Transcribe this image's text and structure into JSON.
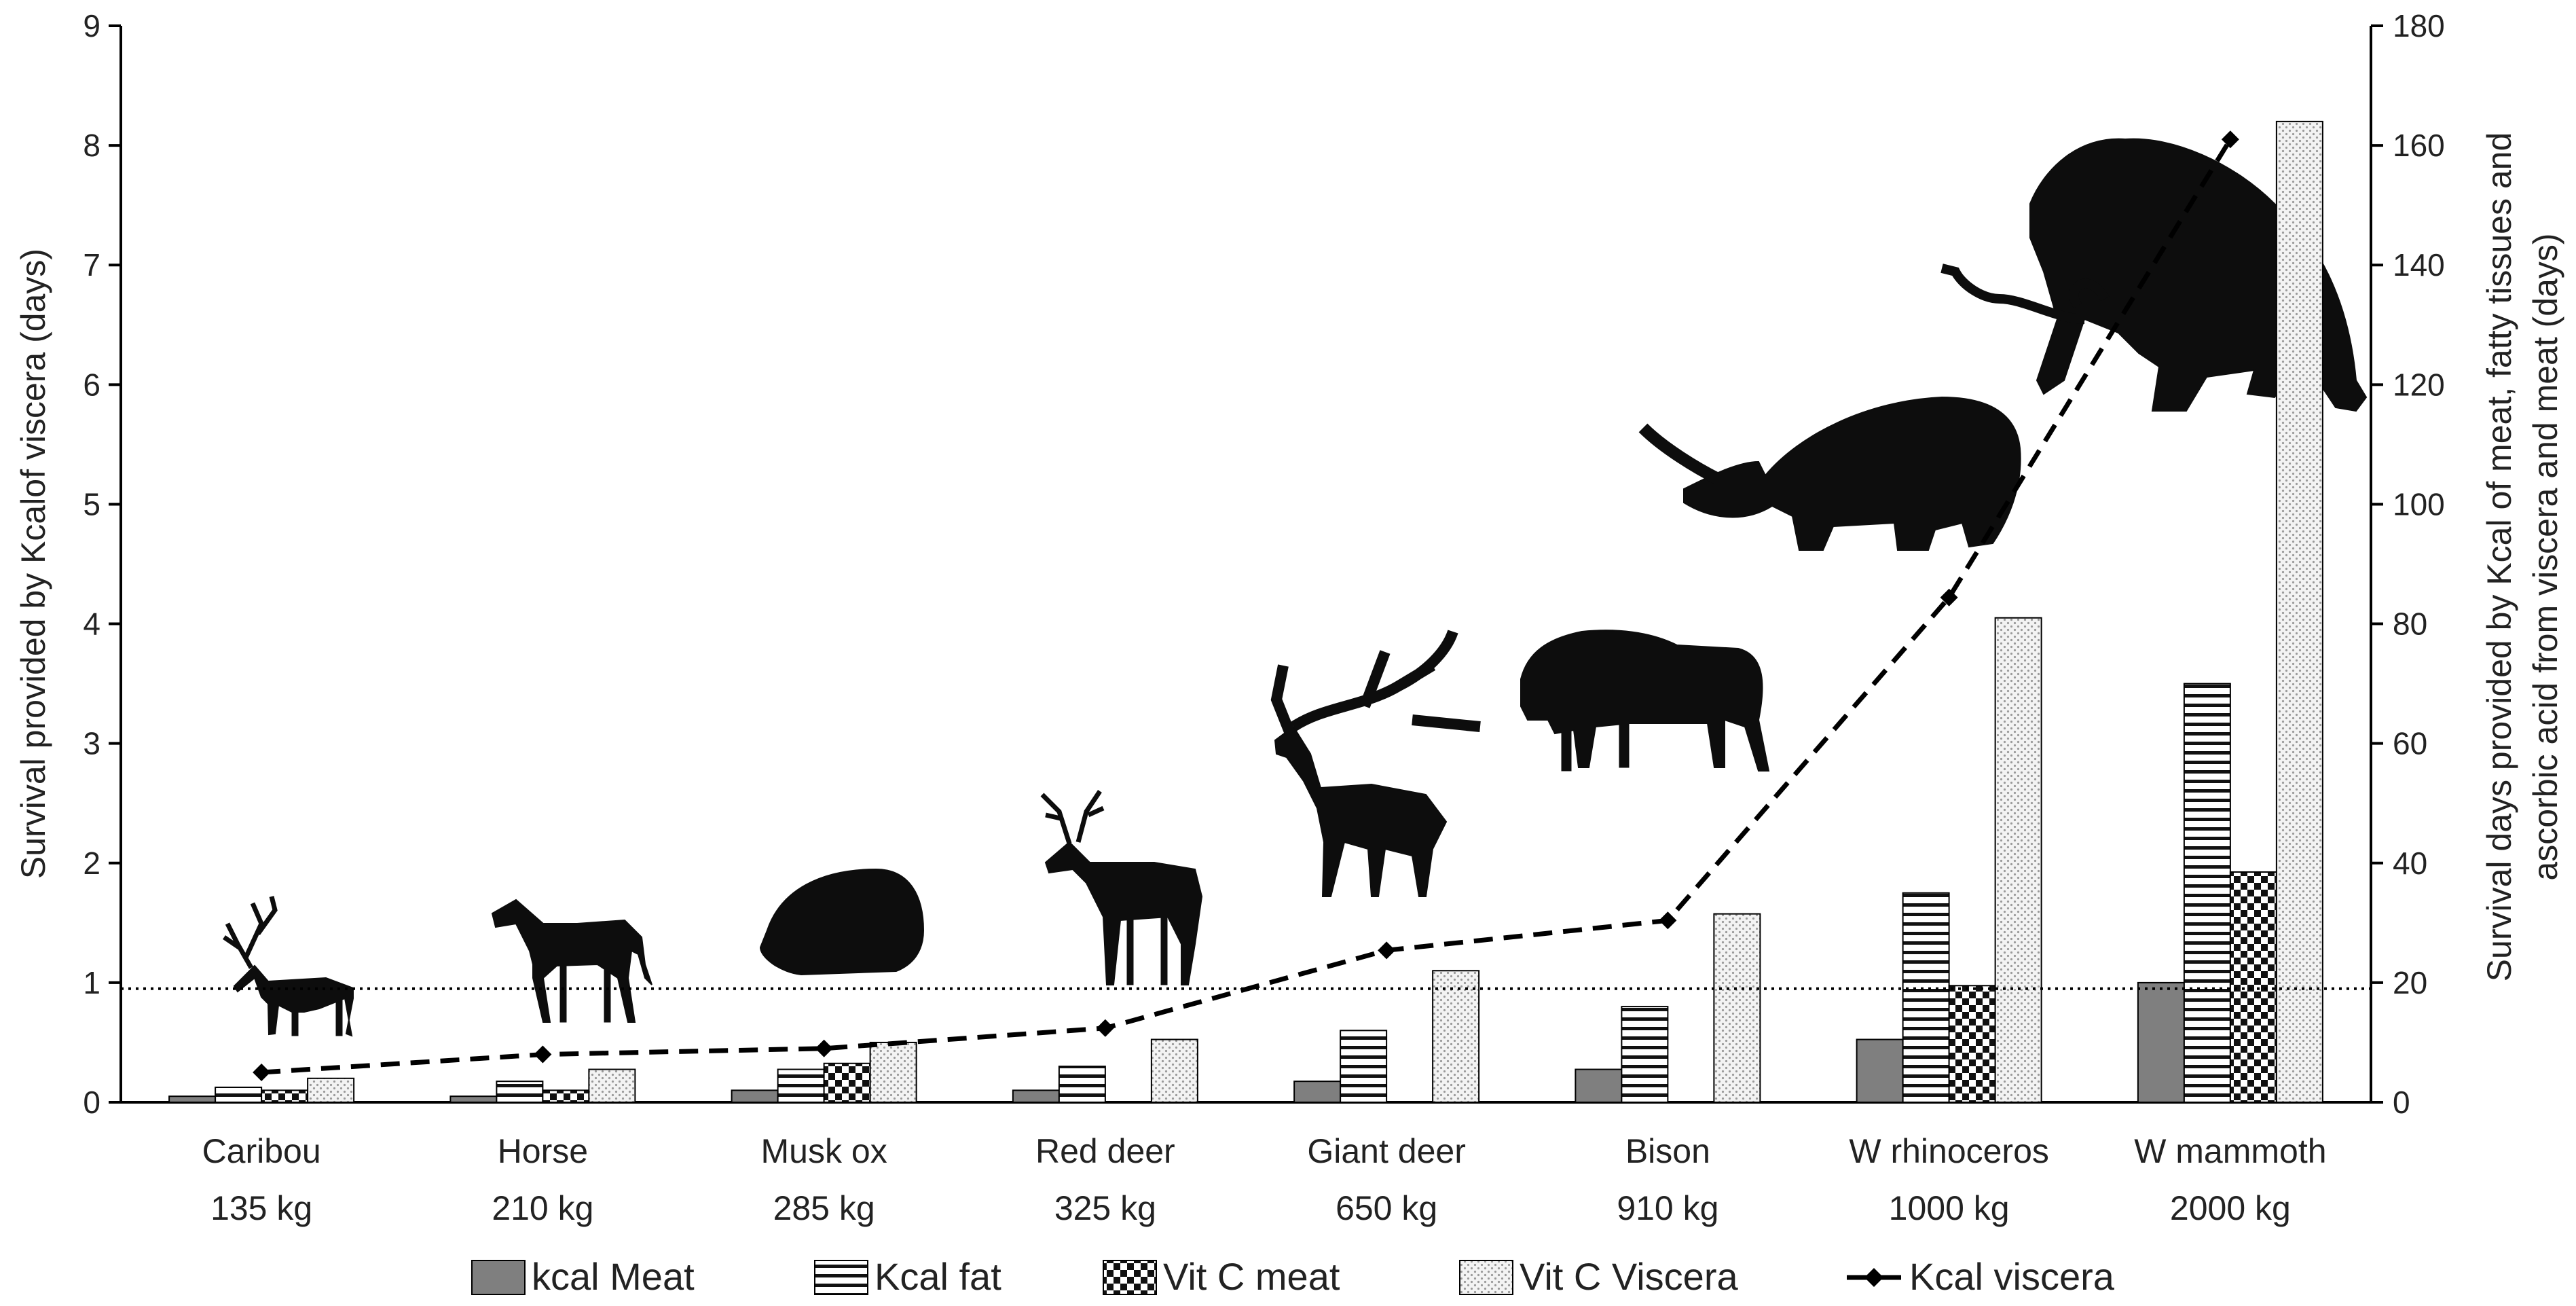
{
  "chart_data": {
    "type": "bar",
    "categories": [
      "Caribou",
      "Horse",
      "Musk ox",
      "Red deer",
      "Giant deer",
      "Bison",
      "W rhinoceros",
      "W mammoth"
    ],
    "category_weights": [
      "135 kg",
      "210 kg",
      "285 kg",
      "325 kg",
      "650 kg",
      "910 kg",
      "1000 kg",
      "2000 kg"
    ],
    "ylabel_left": "Survival provided by Kcalof viscera (days)",
    "ylabel_right": [
      "Survival days provided by Kcal of meat, fatty tissues and",
      "ascorbic acid from viscera and meat (days)"
    ],
    "ylim_left": [
      0,
      9
    ],
    "ylim_right": [
      0,
      180
    ],
    "yticks_left": [
      "0",
      "1",
      "2",
      "3",
      "4",
      "5",
      "6",
      "7",
      "8",
      "9"
    ],
    "yticks_right": [
      "0",
      "20",
      "40",
      "60",
      "80",
      "100",
      "120",
      "140",
      "160",
      "180"
    ],
    "reference_line": {
      "axis": "left",
      "value": 0.95,
      "style": "dotted"
    },
    "series": [
      {
        "name": "kcal Meat",
        "type": "bar",
        "axis": "right",
        "pattern": "solid",
        "values": [
          1,
          1,
          2,
          2,
          3.5,
          5.5,
          10.5,
          20
        ]
      },
      {
        "name": "Kcal fat",
        "type": "bar",
        "axis": "right",
        "pattern": "horizontal-stripes",
        "values": [
          2.5,
          3.5,
          5.5,
          6,
          12,
          16,
          35,
          70
        ]
      },
      {
        "name": "Vit C meat",
        "type": "bar",
        "axis": "right",
        "pattern": "checker",
        "values": [
          2,
          2,
          6.5,
          0,
          0,
          0,
          19.5,
          38.5
        ]
      },
      {
        "name": "Vit C Viscera",
        "type": "bar",
        "axis": "right",
        "pattern": "dotted",
        "values": [
          4,
          5.5,
          10,
          10.5,
          22,
          31.5,
          81,
          164
        ]
      },
      {
        "name": "Kcal viscera",
        "type": "line",
        "axis": "left",
        "style": "dashed-diamond",
        "values": [
          0.25,
          0.4,
          0.45,
          0.62,
          1.27,
          1.52,
          4.22,
          8.05
        ]
      }
    ],
    "icons": [
      "caribou-icon",
      "horse-icon",
      "musk-ox-icon",
      "red-deer-icon",
      "giant-deer-icon",
      "bison-icon",
      "woolly-rhinoceros-icon",
      "woolly-mammoth-icon"
    ],
    "colors": {
      "meat": "#7f7f7f",
      "axis": "#000000",
      "silhouette": "#0d0d0d"
    }
  }
}
